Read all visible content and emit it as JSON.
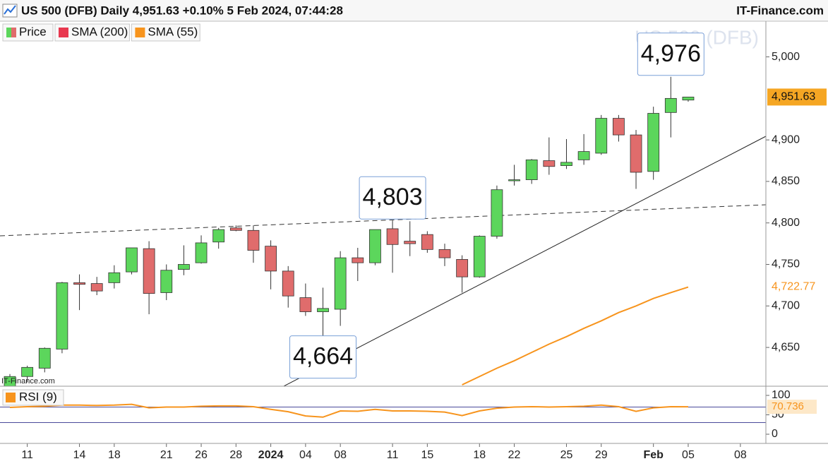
{
  "chart_data": {
    "type": "candlestick",
    "title": "US 500 (DFB) Daily 4,951.63 +0.10% 5 Feb 2024, 07:44:28",
    "brand": "IT-Finance.com",
    "watermark": "US 500 (DFB)",
    "categories": [
      null,
      "11",
      null,
      null,
      "14",
      null,
      "18",
      null,
      null,
      "21",
      null,
      "26",
      null,
      "28",
      null,
      "2024",
      null,
      "04",
      null,
      "08",
      null,
      null,
      "11",
      null,
      "15",
      null,
      null,
      "18",
      null,
      "22",
      null,
      null,
      "25",
      null,
      "29",
      null,
      null,
      "Feb",
      null,
      "05",
      null,
      null,
      "08"
    ],
    "series": [
      {
        "name": "Price",
        "up_color": "#5cd65c",
        "down_color": "#e06c6c",
        "open": [
          4600,
          4615,
          4625,
          4648,
          4728,
          4727,
          4728,
          4741,
          4769,
          4716,
          4744,
          4752,
          4777,
          4794,
          4791,
          4772,
          4742,
          4710,
          4693,
          4696,
          4758,
          4752,
          4793,
          4778,
          4786,
          4768,
          4756,
          4735,
          4784,
          4852,
          4852,
          4875,
          4869,
          4876,
          4884,
          4926,
          4906,
          4862,
          4933,
          4948,
          null,
          null,
          null
        ],
        "high": [
          4618,
          4628,
          4650,
          4729,
          4738,
          4735,
          4749,
          4770,
          4778,
          4750,
          4773,
          4785,
          4794,
          4797,
          4797,
          4779,
          4748,
          4727,
          4722,
          4766,
          4770,
          4792,
          4803,
          4802,
          4790,
          4775,
          4761,
          4785,
          4845,
          4870,
          4877,
          4903,
          4901,
          4907,
          4930,
          4930,
          4912,
          4940,
          4976,
          4952,
          null,
          null,
          null
        ],
        "low": [
          4595,
          4608,
          4620,
          4643,
          4695,
          4713,
          4721,
          4738,
          4690,
          4707,
          4737,
          4751,
          4769,
          4790,
          4752,
          4720,
          4698,
          4688,
          4664,
          4676,
          4730,
          4749,
          4740,
          4760,
          4764,
          4748,
          4716,
          4734,
          4781,
          4845,
          4847,
          4858,
          4865,
          4870,
          4882,
          4898,
          4841,
          4852,
          4903,
          4946,
          null,
          null,
          null
        ],
        "close": [
          4615,
          4626,
          4649,
          4728,
          4726,
          4718,
          4740,
          4770,
          4715,
          4743,
          4750,
          4776,
          4792,
          4791,
          4767,
          4742,
          4712,
          4693,
          4697,
          4758,
          4752,
          4792,
          4774,
          4775,
          4768,
          4758,
          4735,
          4784,
          4840,
          4852,
          4876,
          4868,
          4873,
          4886,
          4926,
          4906,
          4861,
          4932,
          4950,
          4951.63,
          null,
          null,
          null
        ]
      },
      {
        "name": "SMA (200)",
        "color": "#e8384f",
        "values": [
          null,
          null,
          null,
          null,
          null,
          null,
          null,
          null,
          null,
          null,
          null,
          null,
          null,
          null,
          null,
          null,
          null,
          null,
          null,
          null,
          null,
          null,
          null,
          null,
          null,
          null,
          null,
          null,
          null,
          null,
          null,
          null,
          null,
          null,
          null,
          null,
          null,
          null,
          null,
          null,
          null,
          null,
          null
        ]
      },
      {
        "name": "SMA (55)",
        "color": "#f7941d",
        "values": [
          null,
          null,
          null,
          null,
          null,
          null,
          null,
          null,
          null,
          null,
          null,
          null,
          null,
          null,
          null,
          null,
          null,
          null,
          null,
          null,
          null,
          null,
          null,
          null,
          null,
          null,
          4605,
          4615,
          4625,
          4634,
          4644,
          4654,
          4663,
          4673,
          4682,
          4692,
          4700,
          4709,
          4716,
          4722.77,
          null,
          null,
          null
        ]
      }
    ],
    "ylim": [
      4605,
      5043
    ],
    "yticks": [
      {
        "value": 4650,
        "label": "4,650"
      },
      {
        "value": 4700,
        "label": "4,700"
      },
      {
        "value": 4750,
        "label": "4,750"
      },
      {
        "value": 4800,
        "label": "4,800"
      },
      {
        "value": 4850,
        "label": "4,850"
      },
      {
        "value": 4900,
        "label": "4,900"
      },
      {
        "value": 5000,
        "label": "5,000"
      }
    ],
    "last_price": {
      "value": 4951.63,
      "label": "4,951.63",
      "color": "#f5a623"
    },
    "sma_last": {
      "value": 4722.77,
      "label": "4,722.77"
    },
    "annotations": [
      {
        "value": 4976,
        "label": "4,976"
      },
      {
        "value": 4803,
        "label": "4,803"
      },
      {
        "value": 4664,
        "label": "4,664"
      }
    ],
    "rsi": {
      "name": "RSI (9)",
      "color": "#f7941d",
      "level_color": "#4a4a9a",
      "values": [
        69,
        71,
        72,
        75,
        75,
        74,
        75,
        77,
        68,
        70,
        70,
        72,
        73,
        73,
        71,
        64,
        58,
        47,
        44,
        60,
        59,
        64,
        60,
        60,
        59,
        57,
        48,
        60,
        67,
        70,
        71,
        70,
        71,
        72,
        75,
        71,
        59,
        68,
        71,
        70.736,
        null,
        null,
        null
      ],
      "ylim": [
        0,
        100
      ],
      "yticks": [
        0,
        50,
        100
      ],
      "levels": [
        30,
        70
      ],
      "last": {
        "value": 70.736,
        "label": "70.736"
      }
    }
  }
}
